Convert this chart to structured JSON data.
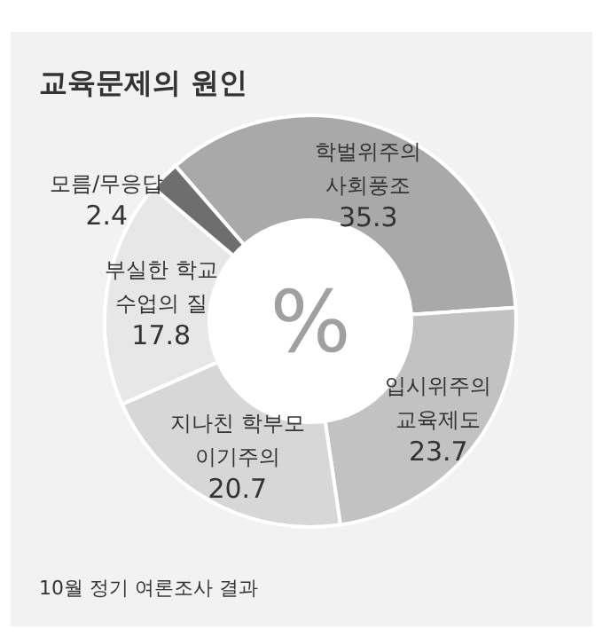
{
  "chart_data": {
    "type": "donut",
    "title": "교육문제의 원인",
    "categories": [
      "학벌위주의\n사회풍조",
      "입시위주의\n교육제도",
      "지나친 학부모\n이기주의",
      "부실한 학교\n수업의 질",
      "모름/무응답"
    ],
    "values": [
      35.3,
      23.7,
      20.7,
      17.8,
      2.4
    ],
    "colors": [
      "#a9a9a9",
      "#c2c2c2",
      "#d7d7d7",
      "#e7e7e7",
      "#6e6e6e"
    ],
    "data_labels": true,
    "annotations": [
      "%",
      "10월 정기 여론조사 결과"
    ]
  }
}
